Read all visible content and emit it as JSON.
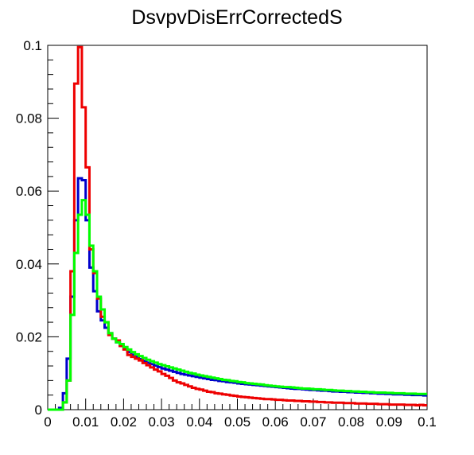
{
  "chart_data": {
    "type": "line",
    "title": "DsvpvDisErrCorrectedS",
    "xlabel": "",
    "ylabel": "",
    "xlim": [
      0,
      0.1
    ],
    "ylim": [
      0,
      0.1
    ],
    "grid": false,
    "legend": "none",
    "x_ticks": [
      0,
      0.01,
      0.02,
      0.03,
      0.04,
      0.05,
      0.06,
      0.07,
      0.08,
      0.09,
      0.1
    ],
    "x_tick_labels": [
      "0",
      "0.01",
      "0.02",
      "0.03",
      "0.04",
      "0.05",
      "0.06",
      "0.07",
      "0.08",
      "0.09",
      "0.1"
    ],
    "y_ticks": [
      0,
      0.02,
      0.04,
      0.06,
      0.08,
      0.1
    ],
    "y_tick_labels": [
      "0",
      "0.02",
      "0.04",
      "0.06",
      "0.08",
      "0.1"
    ],
    "bin_width": 0.001,
    "bin_starts": [
      0.0,
      0.001,
      0.002,
      0.003,
      0.004,
      0.005,
      0.006,
      0.007,
      0.008,
      0.009,
      0.01,
      0.011,
      0.012,
      0.013,
      0.014,
      0.015,
      0.016,
      0.017,
      0.018,
      0.019,
      0.02,
      0.021,
      0.022,
      0.023,
      0.024,
      0.025,
      0.026,
      0.027,
      0.028,
      0.029,
      0.03,
      0.031,
      0.032,
      0.033,
      0.034,
      0.035,
      0.036,
      0.037,
      0.038,
      0.039,
      0.04,
      0.041,
      0.042,
      0.043,
      0.044,
      0.045,
      0.046,
      0.047,
      0.048,
      0.049,
      0.05,
      0.051,
      0.052,
      0.053,
      0.054,
      0.055,
      0.056,
      0.057,
      0.058,
      0.059,
      0.06,
      0.061,
      0.062,
      0.063,
      0.064,
      0.065,
      0.066,
      0.067,
      0.068,
      0.069,
      0.07,
      0.071,
      0.072,
      0.073,
      0.074,
      0.075,
      0.076,
      0.077,
      0.078,
      0.079,
      0.08,
      0.081,
      0.082,
      0.083,
      0.084,
      0.085,
      0.086,
      0.087,
      0.088,
      0.089,
      0.09,
      0.091,
      0.092,
      0.093,
      0.094,
      0.095,
      0.096,
      0.097,
      0.098,
      0.099
    ],
    "series": [
      {
        "color": "#0000cc",
        "values": [
          0,
          0,
          0,
          0.0005,
          0.0045,
          0.014,
          0.031,
          0.052,
          0.0635,
          0.063,
          0.052,
          0.039,
          0.0325,
          0.027,
          0.0245,
          0.0225,
          0.021,
          0.0195,
          0.0185,
          0.0175,
          0.0166,
          0.0158,
          0.0151,
          0.0145,
          0.0139,
          0.0134,
          0.0129,
          0.0125,
          0.0121,
          0.0117,
          0.0113,
          0.011,
          0.0107,
          0.0104,
          0.0101,
          0.0098,
          0.0096,
          0.0094,
          0.0092,
          0.009,
          0.0088,
          0.0086,
          0.0084,
          0.0082,
          0.0081,
          0.0079,
          0.0078,
          0.0076,
          0.0075,
          0.0074,
          0.0072,
          0.0071,
          0.007,
          0.0069,
          0.0068,
          0.0067,
          0.0066,
          0.0065,
          0.0064,
          0.0063,
          0.0062,
          0.0061,
          0.006,
          0.0059,
          0.0058,
          0.0057,
          0.0057,
          0.0056,
          0.0055,
          0.0054,
          0.0054,
          0.0053,
          0.0052,
          0.0052,
          0.0051,
          0.005,
          0.005,
          0.0049,
          0.0049,
          0.0048,
          0.0048,
          0.0047,
          0.0047,
          0.0046,
          0.0046,
          0.0045,
          0.0045,
          0.0044,
          0.0044,
          0.0043,
          0.0043,
          0.0042,
          0.0042,
          0.0042,
          0.0041,
          0.0041,
          0.004,
          0.004,
          0.004,
          0.0039
        ]
      },
      {
        "color": "#ee0000",
        "values": [
          0,
          0,
          0,
          0,
          0.002,
          0.008,
          0.038,
          0.0895,
          0.0995,
          0.083,
          0.0665,
          0.044,
          0.0375,
          0.0305,
          0.0255,
          0.024,
          0.0205,
          0.0195,
          0.019,
          0.0175,
          0.0165,
          0.015,
          0.0145,
          0.014,
          0.0135,
          0.0128,
          0.0122,
          0.0116,
          0.011,
          0.0105,
          0.0098,
          0.0093,
          0.0087,
          0.008,
          0.0075,
          0.0072,
          0.0068,
          0.0064,
          0.006,
          0.0057,
          0.0055,
          0.0052,
          0.0049,
          0.0048,
          0.0045,
          0.0044,
          0.0042,
          0.0041,
          0.0039,
          0.0038,
          0.0036,
          0.0035,
          0.0034,
          0.0033,
          0.0032,
          0.0031,
          0.003,
          0.0029,
          0.0029,
          0.0028,
          0.0027,
          0.0027,
          0.0026,
          0.0025,
          0.0025,
          0.0024,
          0.0024,
          0.0023,
          0.0023,
          0.0022,
          0.0022,
          0.0021,
          0.0021,
          0.002,
          0.002,
          0.0019,
          0.0019,
          0.0019,
          0.0018,
          0.0018,
          0.0018,
          0.0017,
          0.0017,
          0.0017,
          0.0016,
          0.0016,
          0.0016,
          0.0015,
          0.0015,
          0.0015,
          0.0014,
          0.0014,
          0.0014,
          0.0014,
          0.0013,
          0.0013,
          0.0013,
          0.0012,
          0.0013,
          0.0012
        ]
      },
      {
        "color": "#00ff00",
        "values": [
          0,
          0,
          0,
          0,
          0.002,
          0.008,
          0.026,
          0.043,
          0.0535,
          0.0575,
          0.0535,
          0.045,
          0.038,
          0.031,
          0.0275,
          0.024,
          0.021,
          0.0195,
          0.0185,
          0.018,
          0.0172,
          0.0165,
          0.0158,
          0.0152,
          0.0147,
          0.0142,
          0.0137,
          0.0133,
          0.0129,
          0.0125,
          0.0122,
          0.0119,
          0.0116,
          0.0113,
          0.011,
          0.0107,
          0.0104,
          0.0101,
          0.0099,
          0.0096,
          0.0094,
          0.0092,
          0.009,
          0.0088,
          0.0086,
          0.0084,
          0.0082,
          0.0081,
          0.0079,
          0.0078,
          0.0076,
          0.0075,
          0.0073,
          0.0072,
          0.0071,
          0.007,
          0.0069,
          0.0067,
          0.0066,
          0.0065,
          0.0064,
          0.0063,
          0.0062,
          0.0062,
          0.0061,
          0.006,
          0.0059,
          0.0058,
          0.0058,
          0.0057,
          0.0056,
          0.0056,
          0.0055,
          0.0054,
          0.0054,
          0.0053,
          0.0052,
          0.0052,
          0.0051,
          0.0051,
          0.005,
          0.005,
          0.0049,
          0.0049,
          0.0048,
          0.0048,
          0.0047,
          0.0047,
          0.0047,
          0.0046,
          0.0046,
          0.0045,
          0.0045,
          0.0045,
          0.0044,
          0.0044,
          0.0044,
          0.0043,
          0.0043,
          0.0043
        ]
      }
    ]
  }
}
